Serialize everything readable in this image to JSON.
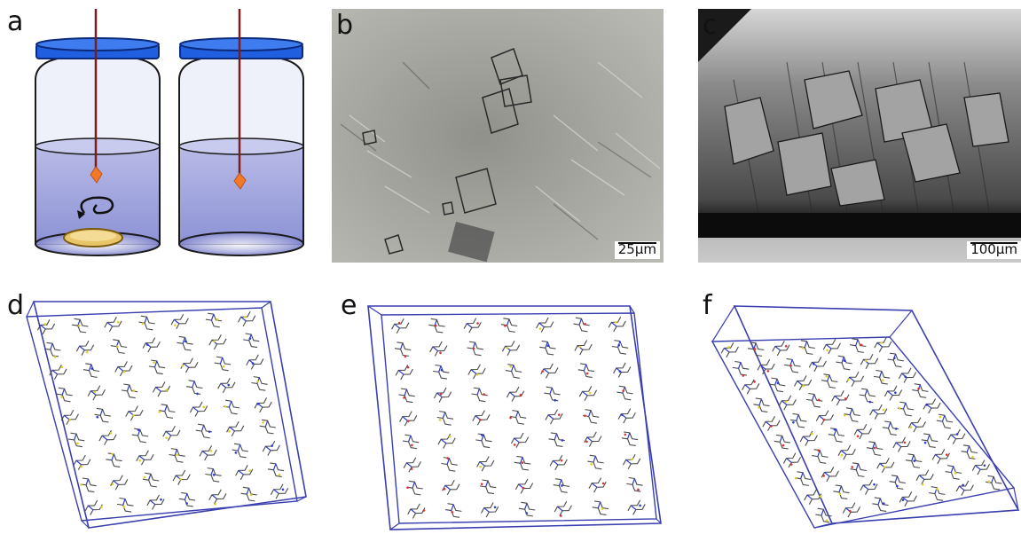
{
  "panel_labels": {
    "a": "a",
    "b": "b",
    "c": "c",
    "d": "d",
    "e": "e",
    "f": "f"
  },
  "scale_bars": {
    "b": "25µm",
    "c": "100µm"
  },
  "colors": {
    "lid": "#1f5fe0",
    "lid_dark": "#0b2a7a",
    "jar_glass": "#eef0fa",
    "liquid": "#9fa3d8",
    "fiber": "#7a1d1d",
    "crystal": "#f07a2a",
    "stir_bar": "#e9c56a",
    "unit_cell": "#3a3fb0",
    "molecule": "#4a4a4a",
    "atom_s": "#e0d020",
    "atom_o": "#e03030",
    "atom_n": "#2a3ad0"
  },
  "icons": [
    "rotation-arrow-icon"
  ]
}
